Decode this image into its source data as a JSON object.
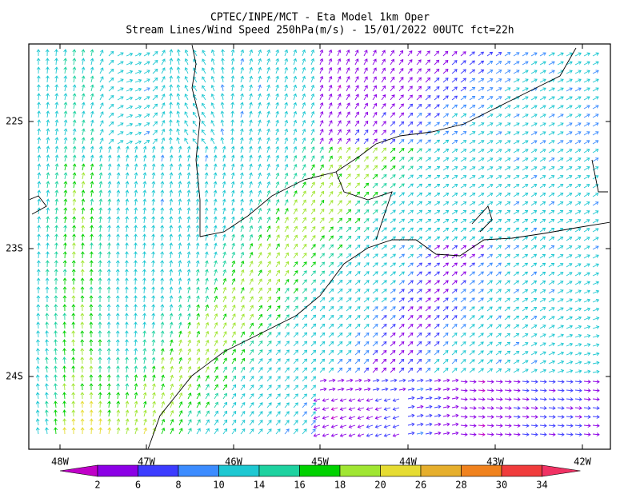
{
  "header": {
    "title": "CPTEC/INPE/MCT -  Eta Model 1km Oper",
    "subtitle": "Stream Lines/Wind Speed 250hPa(m/s) - 15/01/2022 00UTC fct=22h"
  },
  "map": {
    "x_labels": [
      "48W",
      "47W",
      "46W",
      "45W",
      "44W",
      "43W",
      "42W"
    ],
    "y_labels": [
      "22S",
      "23S",
      "24S"
    ]
  },
  "colorbar": {
    "labels": [
      2,
      6,
      8,
      10,
      14,
      16,
      18,
      20,
      26,
      28,
      30,
      34
    ],
    "colors": [
      "#c000c8",
      "#8c00e6",
      "#3c3cff",
      "#3c8cff",
      "#1ec8d2",
      "#1ed2a0",
      "#00d200",
      "#a0e632",
      "#e6dc32",
      "#e6af2d",
      "#f0821e",
      "#f03c3c",
      "#f03264"
    ]
  }
}
